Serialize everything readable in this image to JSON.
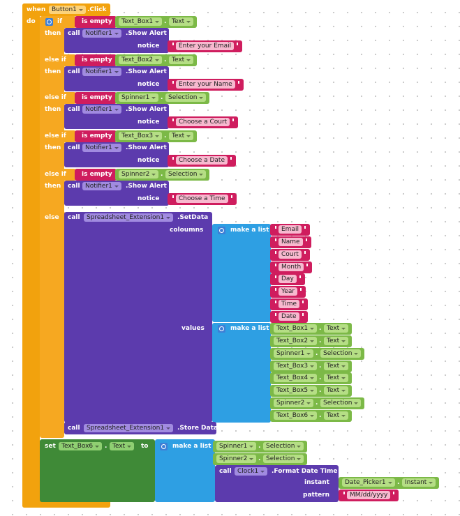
{
  "event_block": {
    "keyword": "when",
    "component": "Button1",
    "event": ".Click",
    "do_label": "do"
  },
  "separator": ".",
  "conditions": [
    {
      "keyword": "if",
      "test": "is empty",
      "component": "Text_Box1",
      "property": "Text",
      "then_label": "then",
      "call_label": "call",
      "notifier": "Notifier1",
      "method": ".Show Alert",
      "param_label": "notice",
      "message": "Enter your Email"
    },
    {
      "keyword": "else if",
      "test": "is empty",
      "component": "Text_Box2",
      "property": "Text",
      "then_label": "then",
      "call_label": "call",
      "notifier": "Notifier1",
      "method": ".Show Alert",
      "param_label": "notice",
      "message": "Enter your Name"
    },
    {
      "keyword": "else if",
      "test": "is empty",
      "component": "Spinner1",
      "property": "Selection",
      "then_label": "then",
      "call_label": "call",
      "notifier": "Notifier1",
      "method": ".Show Alert",
      "param_label": "notice",
      "message": "Choose a Court"
    },
    {
      "keyword": "else if",
      "test": "is empty",
      "component": "Text_Box3",
      "property": "Text",
      "then_label": "then",
      "call_label": "call",
      "notifier": "Notifier1",
      "method": ".Show Alert",
      "param_label": "notice",
      "message": "Choose a Date"
    },
    {
      "keyword": "else if",
      "test": "is empty",
      "component": "Spinner2",
      "property": "Selection",
      "then_label": "then",
      "call_label": "call",
      "notifier": "Notifier1",
      "method": ".Show Alert",
      "param_label": "notice",
      "message": "Choose a Time"
    }
  ],
  "else_branch": {
    "keyword": "else",
    "call_label": "call",
    "component": "Spreadsheet_Extension1",
    "method": ".SetData",
    "columns_label": "coloumns",
    "columns_list_label": "make a list",
    "columns": [
      "Email",
      "Name",
      "Court",
      "Month",
      "Day",
      "Year",
      "Time",
      "Date"
    ],
    "values_label": "values",
    "values_list_label": "make a list",
    "values": [
      {
        "component": "Text_Box1",
        "property": "Text"
      },
      {
        "component": "Text_Box2",
        "property": "Text"
      },
      {
        "component": "Spinner1",
        "property": "Selection"
      },
      {
        "component": "Text_Box3",
        "property": "Text"
      },
      {
        "component": "Text_Box4",
        "property": "Text"
      },
      {
        "component": "Text_Box5",
        "property": "Text"
      },
      {
        "component": "Spinner2",
        "property": "Selection"
      },
      {
        "component": "Text_Box6",
        "property": "Text"
      }
    ],
    "store_call_label": "call",
    "store_component": "Spreadsheet_Extension1",
    "store_method": ".Store Data"
  },
  "set_block": {
    "keyword": "set",
    "component": "Text_Box6",
    "property": "Text",
    "to_label": "to",
    "list_label": "make a list",
    "items": [
      {
        "component": "Spinner1",
        "property": "Selection"
      },
      {
        "component": "Spinner2",
        "property": "Selection"
      }
    ],
    "call_label": "call",
    "clock": "Clock1",
    "method": ".Format Date Time",
    "instant_label": "instant",
    "instant": {
      "component": "Date_Picker1",
      "property": "Instant"
    },
    "pattern_label": "pattern",
    "pattern": "MM/dd/yyyy"
  }
}
